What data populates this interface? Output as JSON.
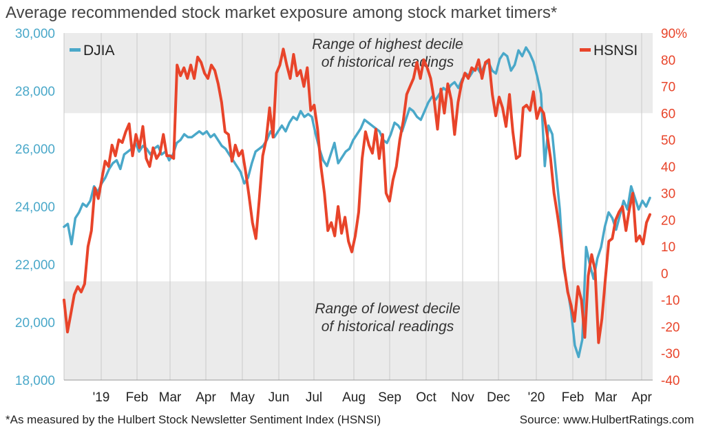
{
  "chart_data": {
    "type": "line",
    "title": "Average recommended stock market exposure among stock market timers*",
    "footnote": "*As measured by the Hulbert Stock Newsletter Sentiment Index (HSNSI)",
    "source": "Source: www.HulbertRatings.com",
    "x_tick_labels": [
      "'19",
      "Feb",
      "Mar",
      "Apr",
      "May",
      "Jun",
      "Jul",
      "Aug",
      "Sep",
      "Oct",
      "Nov",
      "Dec",
      "'20",
      "Feb",
      "Mar",
      "Apr"
    ],
    "y_left": {
      "ylim": [
        18000,
        30000
      ],
      "ticks": [
        "18,000",
        "20,000",
        "22,000",
        "24,000",
        "26,000",
        "28,000",
        "30,000"
      ]
    },
    "y_right": {
      "ylim": [
        -40,
        90
      ],
      "ticks": [
        "-40",
        "-30",
        "-20",
        "-10",
        "0",
        "10",
        "20",
        "30",
        "40",
        "50",
        "60",
        "70",
        "80",
        "90%"
      ]
    },
    "bands": [
      {
        "label_lines": [
          "Range of highest decile",
          "of historical readings"
        ],
        "y_from": 60,
        "y_to": 90,
        "color": "#ebebeb"
      },
      {
        "label_lines": [
          "Range of lowest decile",
          "of historical readings"
        ],
        "y_from": -40,
        "y_to": -3,
        "color": "#ebebeb"
      }
    ],
    "grid": "vertical",
    "series": [
      {
        "name": "DJIA",
        "axis": "left",
        "color": "#4aa8c9",
        "values": [
          23300,
          23400,
          22700,
          23600,
          23800,
          24100,
          24000,
          24200,
          24700,
          24500,
          24800,
          25000,
          25300,
          25500,
          25600,
          25300,
          25800,
          25900,
          26000,
          26200,
          25900,
          26100,
          26000,
          25800,
          26000,
          26100,
          25800,
          25900,
          25600,
          25800,
          26200,
          26300,
          26500,
          26400,
          26400,
          26500,
          26600,
          26500,
          26600,
          26400,
          26500,
          26300,
          26100,
          26000,
          25800,
          25600,
          25400,
          25200,
          24800,
          25000,
          25500,
          25900,
          26000,
          26100,
          26300,
          26600,
          26400,
          26600,
          26800,
          26600,
          26900,
          27100,
          27000,
          27300,
          27100,
          27200,
          27100,
          26500,
          26000,
          25600,
          25400,
          25800,
          26200,
          25500,
          25700,
          25900,
          26000,
          26300,
          26500,
          26700,
          27000,
          26900,
          26800,
          26700,
          26600,
          26300,
          26200,
          26500,
          26900,
          26800,
          26600,
          27000,
          27400,
          27300,
          27100,
          27000,
          27300,
          27600,
          27800,
          27700,
          27900,
          28100,
          28000,
          28200,
          28300,
          28100,
          28400,
          28600,
          28500,
          28700,
          28800,
          28600,
          28900,
          29000,
          28700,
          28600,
          29100,
          29300,
          29200,
          28700,
          28900,
          29400,
          29200,
          29500,
          29300,
          29000,
          28500,
          27900,
          25400,
          26800,
          26500,
          25200,
          23900,
          21900,
          21200,
          20400,
          19200,
          18800,
          19400,
          22600,
          22000,
          21500,
          22200,
          22600,
          23300,
          23800,
          23600,
          23200,
          23700,
          24200,
          23900,
          24700,
          24300,
          23900,
          24200,
          24000,
          24300
        ]
      },
      {
        "name": "HSNSI",
        "axis": "right",
        "color": "#e8442a",
        "values": [
          -10,
          -22,
          -15,
          -8,
          -5,
          -7,
          -4,
          10,
          16,
          32,
          28,
          35,
          42,
          40,
          48,
          44,
          50,
          49,
          53,
          56,
          44,
          52,
          47,
          55,
          43,
          40,
          47,
          43,
          45,
          52,
          44,
          44,
          43,
          78,
          74,
          77,
          73,
          78,
          73,
          81,
          79,
          75,
          73,
          78,
          76,
          71,
          64,
          53,
          52,
          42,
          48,
          44,
          46,
          38,
          29,
          19,
          13,
          28,
          44,
          50,
          62,
          51,
          75,
          78,
          84,
          78,
          73,
          82,
          74,
          76,
          70,
          77,
          61,
          63,
          54,
          40,
          30,
          16,
          19,
          14,
          25,
          15,
          21,
          12,
          8,
          14,
          23,
          43,
          53,
          48,
          45,
          54,
          43,
          52,
          30,
          27,
          35,
          40,
          50,
          57,
          67,
          70,
          73,
          79,
          73,
          80,
          77,
          73,
          65,
          54,
          69,
          60,
          71,
          65,
          52,
          64,
          71,
          75,
          73,
          77,
          76,
          80,
          73,
          79,
          80,
          67,
          59,
          66,
          62,
          55,
          67,
          53,
          43,
          44,
          62,
          63,
          61,
          68,
          58,
          62,
          60,
          52,
          43,
          30,
          22,
          13,
          2,
          -7,
          -12,
          -18,
          -5,
          -10,
          -24,
          -1,
          7,
          1,
          -26,
          -17,
          -2,
          12,
          13,
          20,
          23,
          25,
          16,
          24,
          30,
          12,
          14,
          11,
          19,
          22
        ]
      }
    ]
  }
}
